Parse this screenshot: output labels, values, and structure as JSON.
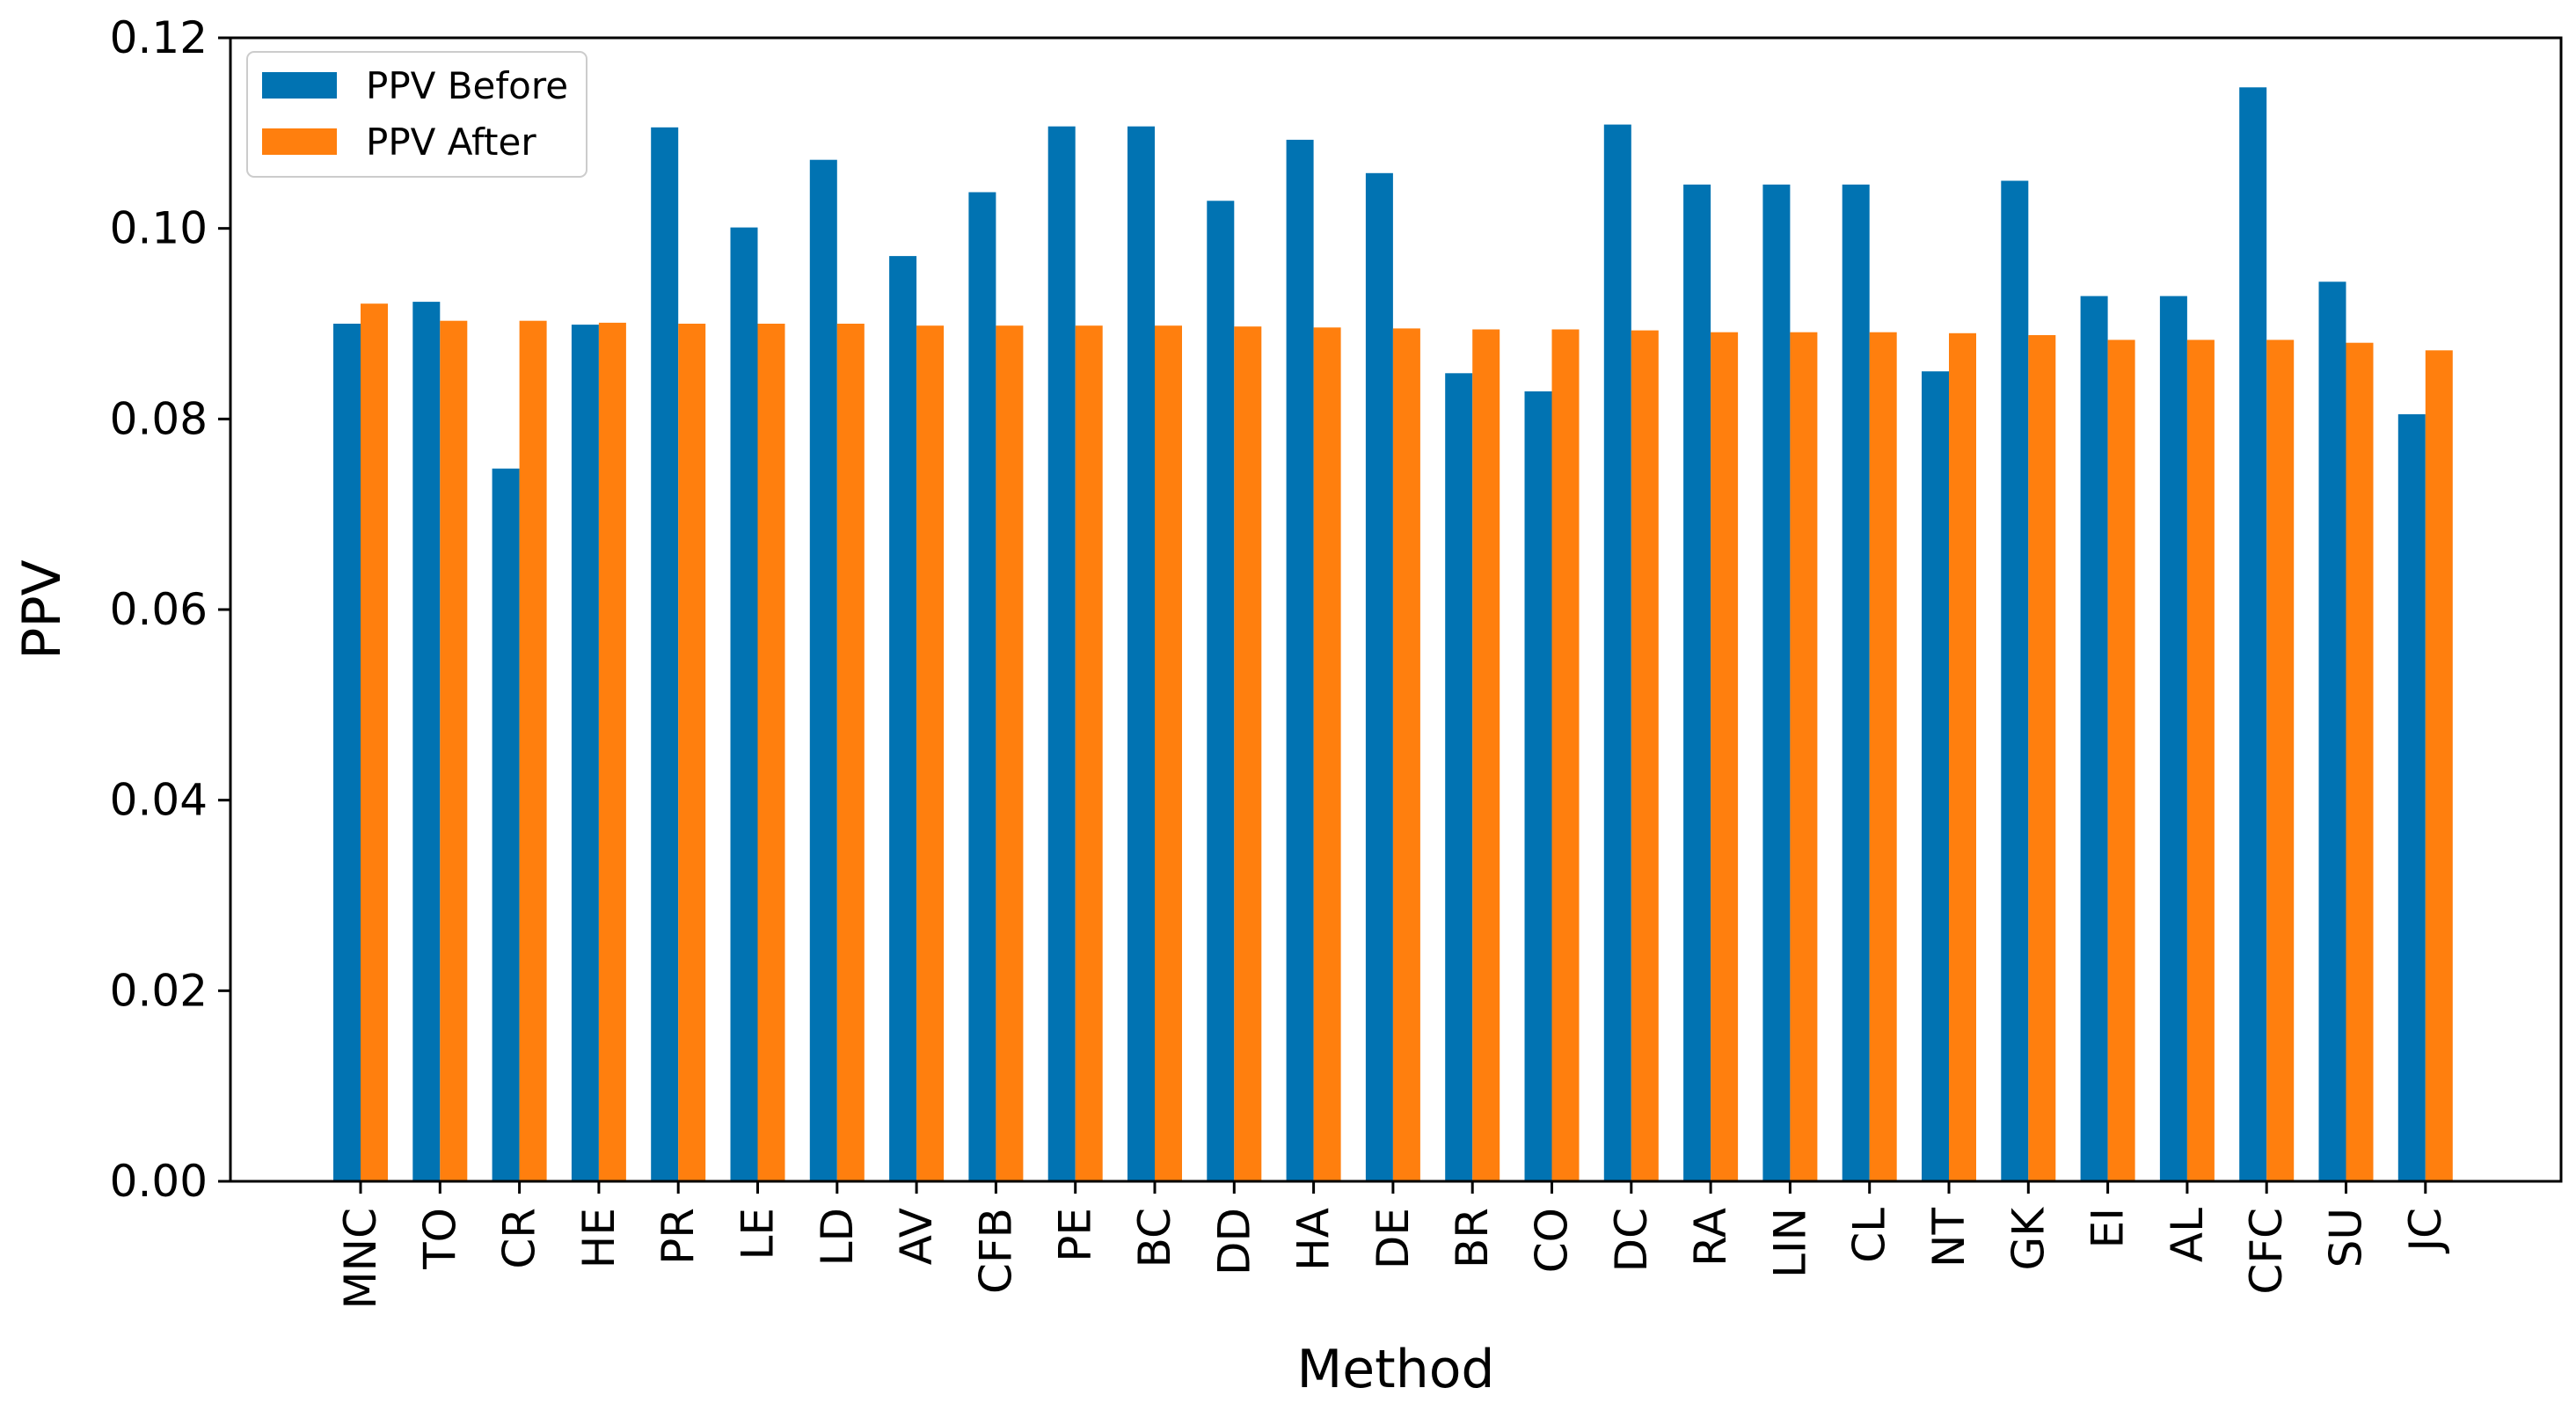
{
  "chart_data": {
    "type": "bar",
    "title": "",
    "xlabel": "Method",
    "ylabel": "PPV",
    "ylim": [
      0,
      0.12
    ],
    "yticks": [
      "0.00",
      "0.02",
      "0.04",
      "0.06",
      "0.08",
      "0.10",
      "0.12"
    ],
    "grid": false,
    "legend_position": "top-left",
    "categories": [
      "MNC",
      "TO",
      "CR",
      "HE",
      "PR",
      "LE",
      "LD",
      "AV",
      "CFB",
      "PE",
      "BC",
      "DD",
      "HA",
      "DE",
      "BR",
      "CO",
      "DC",
      "RA",
      "LIN",
      "CL",
      "NT",
      "GK",
      "EI",
      "AL",
      "CFC",
      "SU",
      "JC"
    ],
    "series": [
      {
        "name": "PPV Before",
        "color": "#0173b2",
        "values": [
          0.09,
          0.0923,
          0.0748,
          0.0899,
          0.1106,
          0.1001,
          0.1072,
          0.0971,
          0.1038,
          0.1107,
          0.1107,
          0.1029,
          0.1093,
          0.1058,
          0.0848,
          0.0829,
          0.1109,
          0.1046,
          0.1046,
          0.1046,
          0.085,
          0.105,
          0.0929,
          0.0929,
          0.1148,
          0.0944,
          0.0805
        ]
      },
      {
        "name": "PPV After",
        "color": "#ff7f0e",
        "values": [
          0.0921,
          0.0903,
          0.0903,
          0.0901,
          0.09,
          0.09,
          0.09,
          0.0898,
          0.0898,
          0.0898,
          0.0898,
          0.0897,
          0.0896,
          0.0895,
          0.0894,
          0.0894,
          0.0893,
          0.0891,
          0.0891,
          0.0891,
          0.089,
          0.0888,
          0.0883,
          0.0883,
          0.0883,
          0.088,
          0.0872
        ]
      }
    ]
  }
}
